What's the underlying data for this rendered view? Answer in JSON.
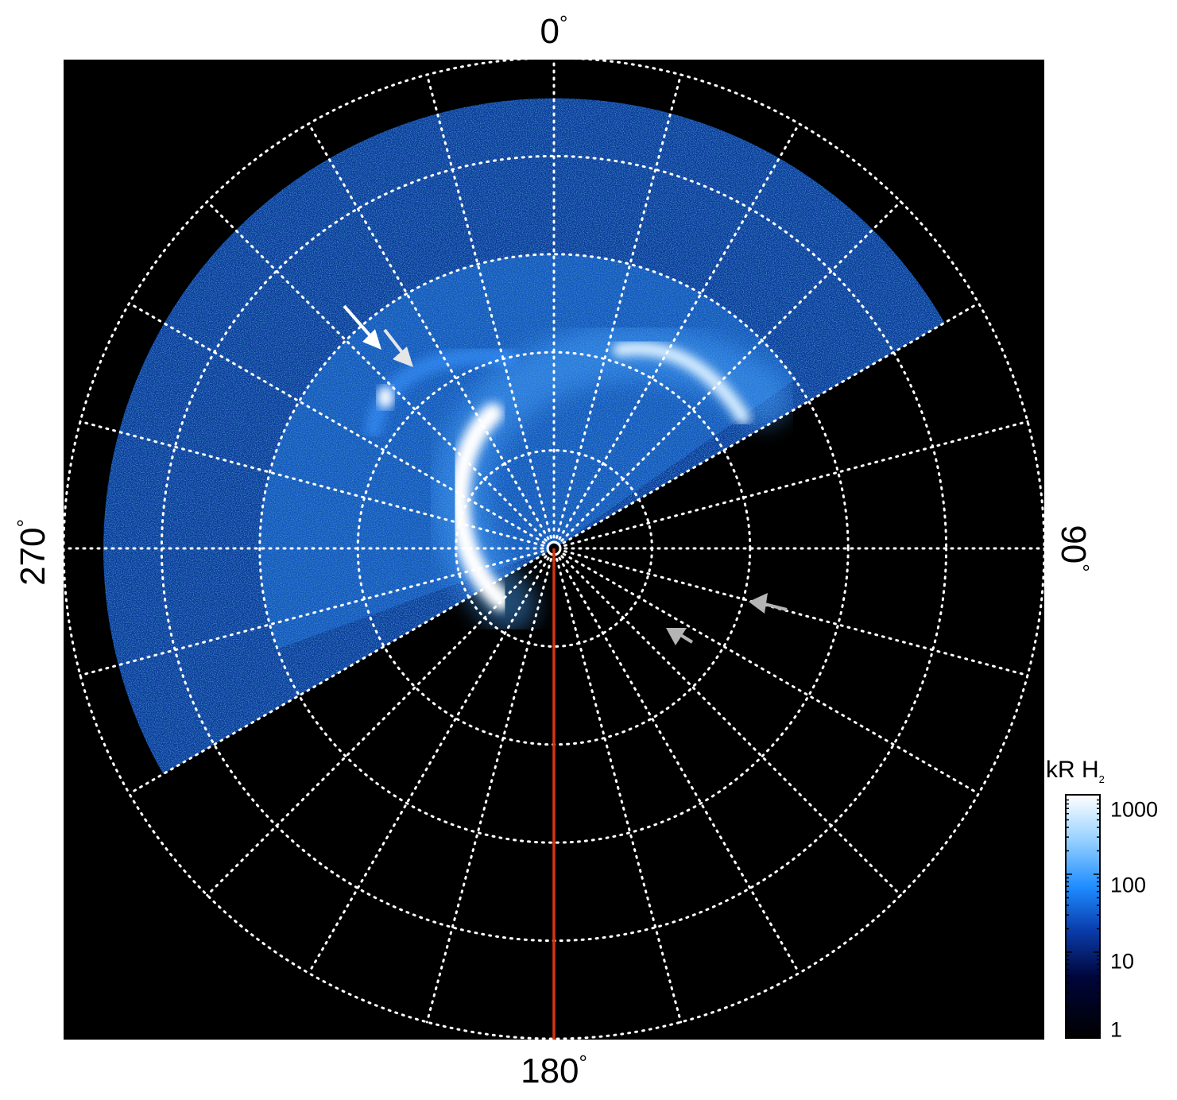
{
  "chart_data": {
    "type": "heatmap",
    "projection": "polar",
    "title": "",
    "angle_labels": {
      "top": "0°",
      "right": "90°",
      "bottom": "180°",
      "left": "270°"
    },
    "angle_label_parts": {
      "top": {
        "value": "0",
        "unit": "°"
      },
      "right": {
        "value": "90",
        "unit": "°"
      },
      "bottom": {
        "value": "180",
        "unit": "°"
      },
      "left": {
        "value": "270",
        "unit": "°"
      }
    },
    "grid": {
      "shown": true,
      "style": "dotted",
      "color": "#ffffff",
      "rings": 5,
      "longitude_spacing_deg": 15
    },
    "observed_sector_deg": [
      240,
      60
    ],
    "colorbar": {
      "title": "kR H",
      "title_subscript": "2",
      "scale": "log",
      "range": [
        1,
        1000
      ],
      "ticks": [
        1,
        10,
        100,
        1000
      ],
      "tick_labels": [
        "1",
        "10",
        "100",
        "1000"
      ],
      "colors": [
        "#000000",
        "#00053a",
        "#0a3fb0",
        "#1e8cff",
        "#9ad3ff",
        "#ffffff"
      ]
    },
    "reference_line": {
      "angle_deg": 180,
      "color": "#d2360e"
    },
    "annotations": [
      {
        "type": "arrow",
        "color": "#ffffff"
      },
      {
        "type": "arrow",
        "color": "#ffffff"
      },
      {
        "type": "arrow",
        "color": "#b4b4b4"
      },
      {
        "type": "arrow",
        "color": "#b4b4b4"
      }
    ]
  }
}
